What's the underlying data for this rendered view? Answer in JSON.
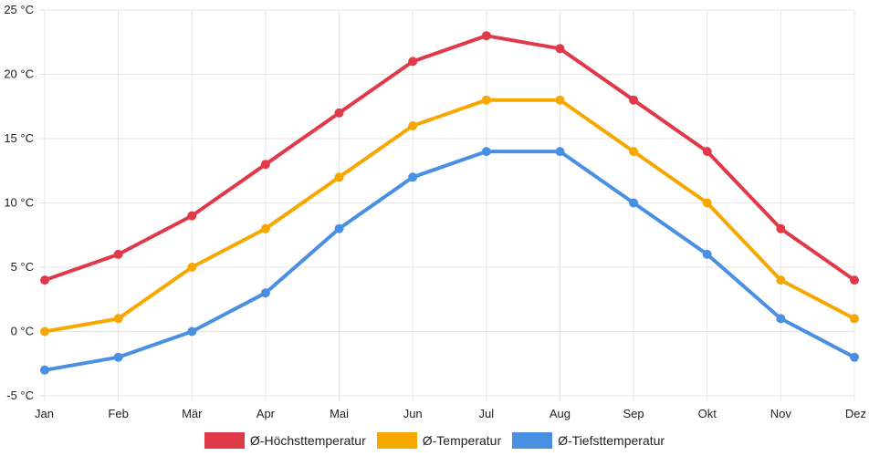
{
  "chart_data": {
    "type": "line",
    "title": "",
    "xlabel": "",
    "ylabel": "",
    "categories": [
      "Jan",
      "Feb",
      "Mär",
      "Apr",
      "Mai",
      "Jun",
      "Jul",
      "Aug",
      "Sep",
      "Okt",
      "Nov",
      "Dez"
    ],
    "ylim": [
      -5,
      25
    ],
    "yticks": [
      -5,
      0,
      5,
      10,
      15,
      20,
      25
    ],
    "y_unit": "°C",
    "grid": true,
    "legend_position": "bottom",
    "series": [
      {
        "name": "Ø-Höchsttemperatur",
        "color": "#e03a4a",
        "values": [
          4,
          6,
          9,
          13,
          17,
          21,
          23,
          22,
          18,
          14,
          8,
          4
        ]
      },
      {
        "name": "Ø-Temperatur",
        "color": "#f6a800",
        "values": [
          0,
          1,
          5,
          8,
          12,
          16,
          18,
          18,
          14,
          10,
          4,
          1
        ]
      },
      {
        "name": "Ø-Tiefsttemperatur",
        "color": "#4a90e2",
        "values": [
          -3,
          -2,
          0,
          3,
          8,
          12,
          14,
          14,
          10,
          6,
          1,
          -2
        ]
      }
    ]
  }
}
